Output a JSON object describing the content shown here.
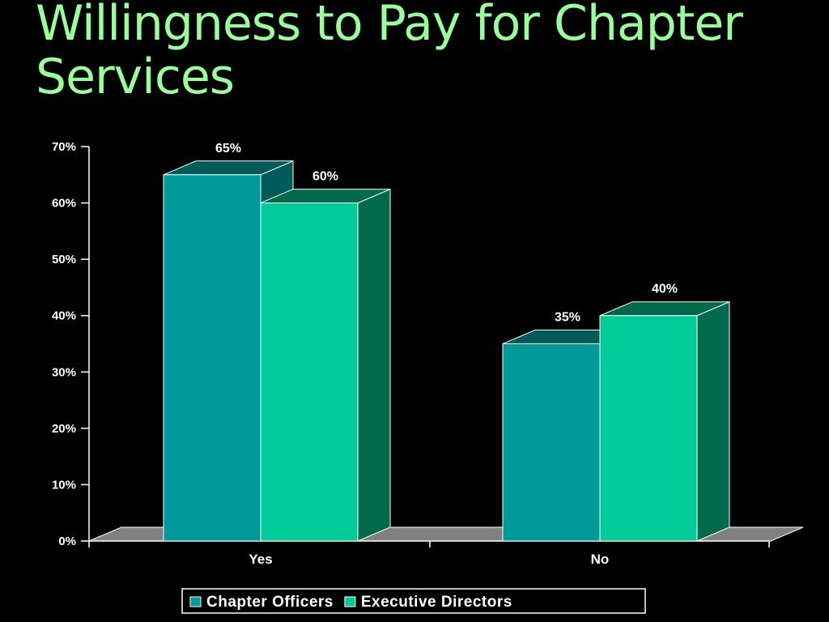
{
  "slide": {
    "title_line1": "Willingness to Pay for Chapter",
    "title_line2": "Services"
  },
  "chart_data": {
    "type": "bar",
    "style": "3d-clustered-column",
    "title": "",
    "categories": [
      "Yes",
      "No"
    ],
    "series": [
      {
        "name": "Chapter Officers",
        "values": [
          65,
          35
        ],
        "color": "#009999",
        "side_color": "#005a5a"
      },
      {
        "name": "Executive Directors",
        "values": [
          60,
          40
        ],
        "color": "#00cc99",
        "side_color": "#006a4a"
      }
    ],
    "data_labels": [
      [
        "65%",
        "35%"
      ],
      [
        "60%",
        "40%"
      ]
    ],
    "ylim": [
      0,
      70
    ],
    "yticks": [
      0,
      10,
      20,
      30,
      40,
      50,
      60,
      70
    ],
    "ytick_labels": [
      "0%",
      "10%",
      "20%",
      "30%",
      "40%",
      "50%",
      "60%",
      "70%"
    ],
    "xlabel": "",
    "ylabel": "",
    "grid": false,
    "legend_placement": "bottom-center",
    "floor_color": "#808080",
    "bar_edge_color": "#ffffff"
  }
}
